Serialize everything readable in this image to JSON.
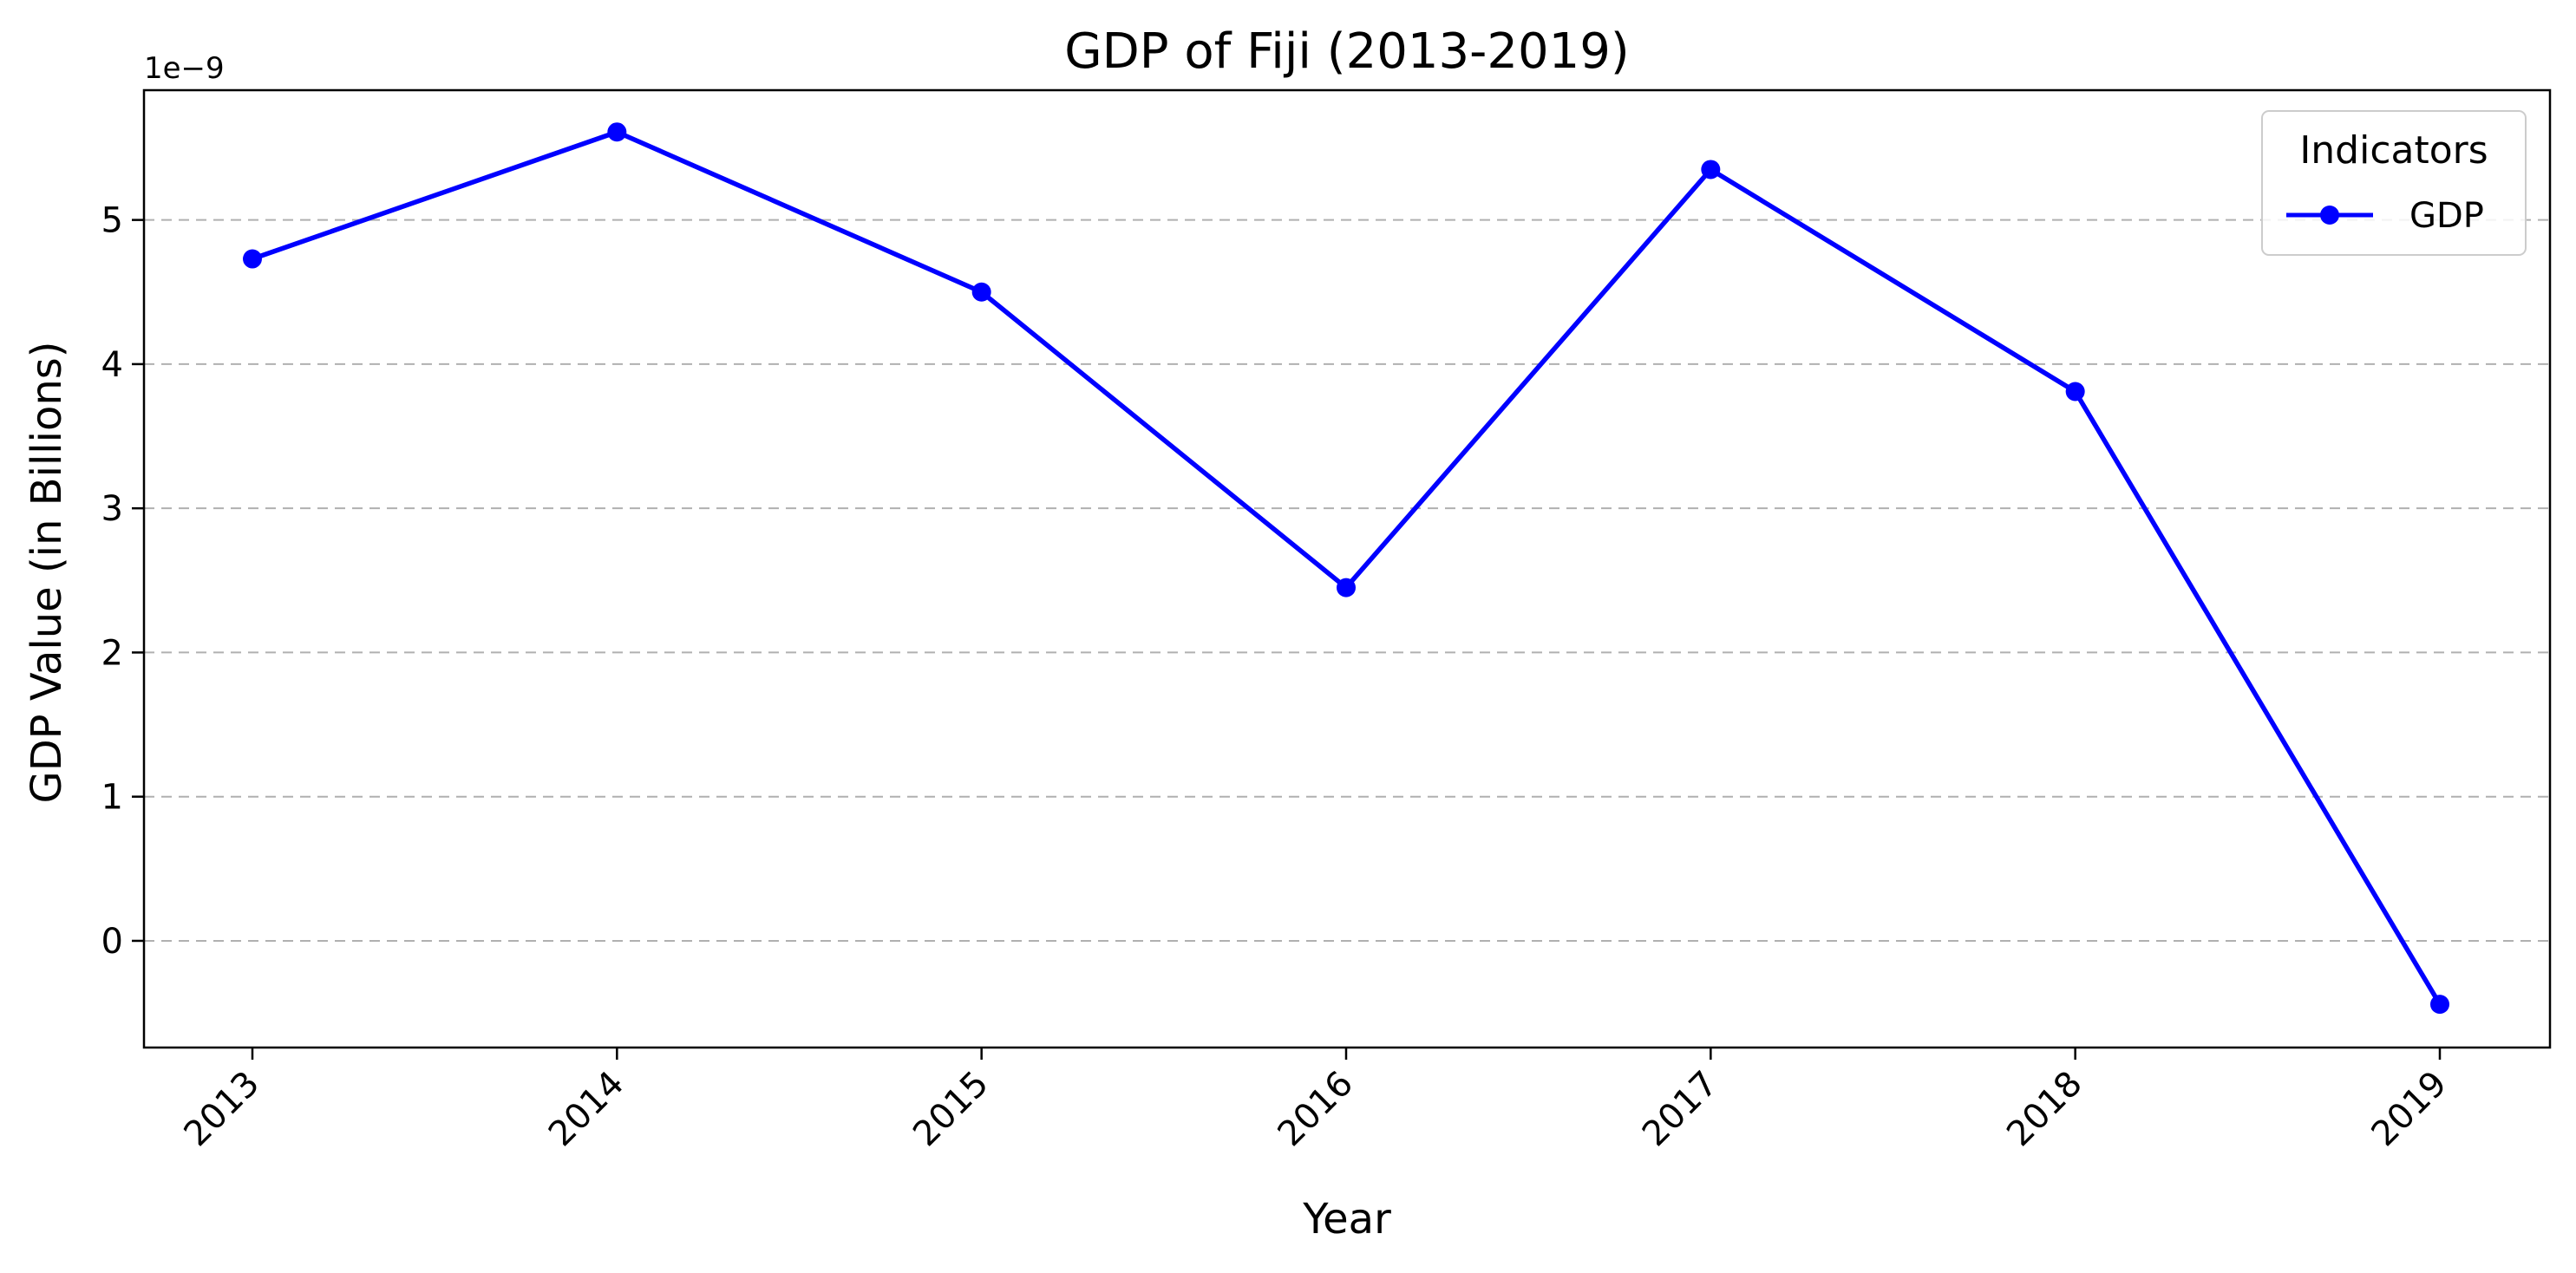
{
  "chart_data": {
    "type": "line",
    "title": "GDP of Fiji (2013-2019)",
    "xlabel": "Year",
    "ylabel": "GDP Value (in Billions)",
    "y_offset_label": "1e−9",
    "x": [
      "2013",
      "2014",
      "2015",
      "2016",
      "2017",
      "2018",
      "2019"
    ],
    "series": [
      {
        "name": "GDP",
        "values": [
          4.73,
          5.61,
          4.5,
          2.45,
          5.35,
          3.81,
          -0.44
        ],
        "color": "#0000ff"
      }
    ],
    "yticks": [
      "0",
      "1",
      "2",
      "3",
      "4",
      "5"
    ],
    "ylim": [
      -0.74,
      5.9
    ],
    "grid": "y-dashed",
    "legend": {
      "title": "Indicators",
      "placement": "top-right"
    }
  }
}
